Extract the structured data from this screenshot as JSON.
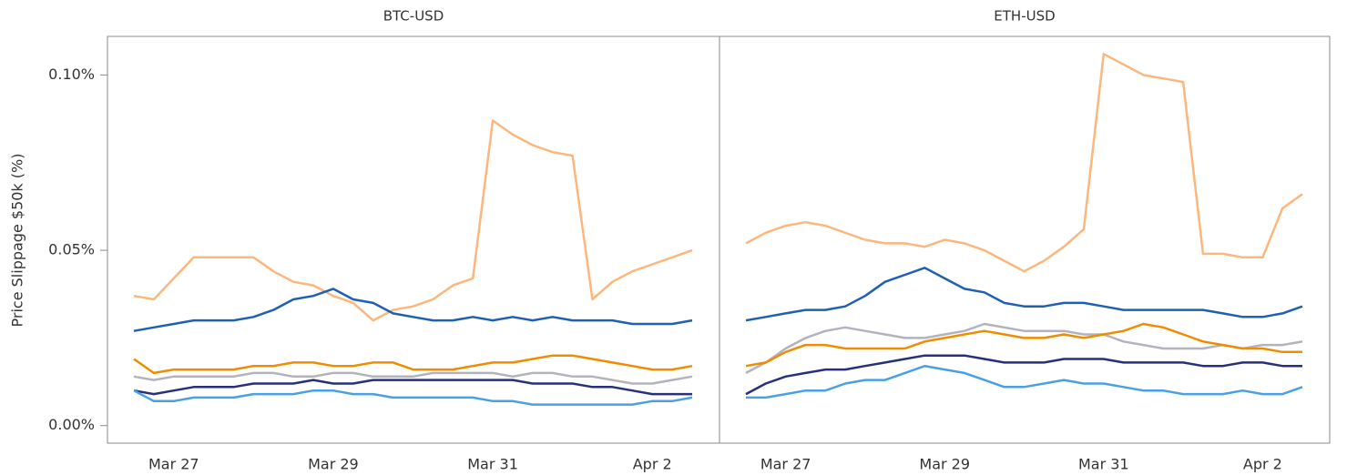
{
  "chart_data": [
    {
      "type": "line",
      "title": "BTC-USD",
      "ylabel": "Price Slippage $50k (%)",
      "categories": [
        null,
        null,
        "Mar 27",
        null,
        null,
        null,
        null,
        null,
        null,
        null,
        "Mar 29",
        null,
        null,
        null,
        null,
        null,
        null,
        null,
        "Mar 31",
        null,
        null,
        null,
        null,
        null,
        null,
        null,
        "Apr 2",
        null,
        null
      ],
      "ylim": [
        -0.005,
        0.111
      ],
      "yticks": [
        {
          "value": 0,
          "label": "0.00%"
        },
        {
          "value": 0.05,
          "label": "0.05%"
        },
        {
          "value": 0.1,
          "label": "0.10%"
        }
      ],
      "series": [
        {
          "color": "#fdb67c",
          "values": [
            0.037,
            0.036,
            0.042,
            0.048,
            0.048,
            0.048,
            0.048,
            0.044,
            0.041,
            0.04,
            0.037,
            0.035,
            0.03,
            0.033,
            0.034,
            0.036,
            0.04,
            0.042,
            0.087,
            0.083,
            0.08,
            0.078,
            0.077,
            0.036,
            0.041,
            0.044,
            0.046,
            0.048,
            0.05
          ]
        },
        {
          "color": "#1f5fb4",
          "values": [
            0.027,
            0.028,
            0.029,
            0.03,
            0.03,
            0.03,
            0.031,
            0.033,
            0.036,
            0.037,
            0.039,
            0.036,
            0.035,
            0.032,
            0.031,
            0.03,
            0.03,
            0.031,
            0.03,
            0.031,
            0.03,
            0.031,
            0.03,
            0.03,
            0.03,
            0.029,
            0.029,
            0.029,
            0.03
          ]
        },
        {
          "color": "#b3b3bd",
          "values": [
            0.014,
            0.013,
            0.014,
            0.014,
            0.014,
            0.014,
            0.015,
            0.015,
            0.014,
            0.014,
            0.015,
            0.015,
            0.014,
            0.014,
            0.014,
            0.015,
            0.015,
            0.015,
            0.015,
            0.014,
            0.015,
            0.015,
            0.014,
            0.014,
            0.013,
            0.012,
            0.012,
            0.013,
            0.014
          ]
        },
        {
          "color": "#f08c00",
          "values": [
            0.019,
            0.015,
            0.016,
            0.016,
            0.016,
            0.016,
            0.017,
            0.017,
            0.018,
            0.018,
            0.017,
            0.017,
            0.018,
            0.018,
            0.016,
            0.016,
            0.016,
            0.017,
            0.018,
            0.018,
            0.019,
            0.02,
            0.02,
            0.019,
            0.018,
            0.017,
            0.016,
            0.016,
            0.017
          ]
        },
        {
          "color": "#27307a",
          "values": [
            0.01,
            0.009,
            0.01,
            0.011,
            0.011,
            0.011,
            0.012,
            0.012,
            0.012,
            0.013,
            0.012,
            0.012,
            0.013,
            0.013,
            0.013,
            0.013,
            0.013,
            0.013,
            0.013,
            0.013,
            0.012,
            0.012,
            0.012,
            0.011,
            0.011,
            0.01,
            0.009,
            0.009,
            0.009
          ]
        },
        {
          "color": "#4aa0e6",
          "values": [
            0.01,
            0.007,
            0.007,
            0.008,
            0.008,
            0.008,
            0.009,
            0.009,
            0.009,
            0.01,
            0.01,
            0.009,
            0.009,
            0.008,
            0.008,
            0.008,
            0.008,
            0.008,
            0.007,
            0.007,
            0.006,
            0.006,
            0.006,
            0.006,
            0.006,
            0.006,
            0.007,
            0.007,
            0.008
          ]
        }
      ]
    },
    {
      "type": "line",
      "title": "ETH-USD",
      "categories": [
        null,
        null,
        "Mar 27",
        null,
        null,
        null,
        null,
        null,
        null,
        null,
        "Mar 29",
        null,
        null,
        null,
        null,
        null,
        null,
        null,
        "Mar 31",
        null,
        null,
        null,
        null,
        null,
        null,
        null,
        "Apr 2",
        null,
        null
      ],
      "ylim": [
        -0.005,
        0.111
      ],
      "series": [
        {
          "color": "#fdb67c",
          "values": [
            0.052,
            0.055,
            0.057,
            0.058,
            0.057,
            0.055,
            0.053,
            0.052,
            0.052,
            0.051,
            0.053,
            0.052,
            0.05,
            0.047,
            0.044,
            0.047,
            0.051,
            0.056,
            0.106,
            0.103,
            0.1,
            0.099,
            0.098,
            0.049,
            0.049,
            0.048,
            0.048,
            0.062,
            0.066
          ]
        },
        {
          "color": "#1f5fb4",
          "values": [
            0.03,
            0.031,
            0.032,
            0.033,
            0.033,
            0.034,
            0.037,
            0.041,
            0.043,
            0.045,
            0.042,
            0.039,
            0.038,
            0.035,
            0.034,
            0.034,
            0.035,
            0.035,
            0.034,
            0.033,
            0.033,
            0.033,
            0.033,
            0.033,
            0.032,
            0.031,
            0.031,
            0.032,
            0.034
          ]
        },
        {
          "color": "#b3b3bd",
          "values": [
            0.015,
            0.018,
            0.022,
            0.025,
            0.027,
            0.028,
            0.027,
            0.026,
            0.025,
            0.025,
            0.026,
            0.027,
            0.029,
            0.028,
            0.027,
            0.027,
            0.027,
            0.026,
            0.026,
            0.024,
            0.023,
            0.022,
            0.022,
            0.022,
            0.023,
            0.022,
            0.023,
            0.023,
            0.024
          ]
        },
        {
          "color": "#f08c00",
          "values": [
            0.017,
            0.018,
            0.021,
            0.023,
            0.023,
            0.022,
            0.022,
            0.022,
            0.022,
            0.024,
            0.025,
            0.026,
            0.027,
            0.026,
            0.025,
            0.025,
            0.026,
            0.025,
            0.026,
            0.027,
            0.029,
            0.028,
            0.026,
            0.024,
            0.023,
            0.022,
            0.022,
            0.021,
            0.021
          ]
        },
        {
          "color": "#27307a",
          "values": [
            0.009,
            0.012,
            0.014,
            0.015,
            0.016,
            0.016,
            0.017,
            0.018,
            0.019,
            0.02,
            0.02,
            0.02,
            0.019,
            0.018,
            0.018,
            0.018,
            0.019,
            0.019,
            0.019,
            0.018,
            0.018,
            0.018,
            0.018,
            0.017,
            0.017,
            0.018,
            0.018,
            0.017,
            0.017
          ]
        },
        {
          "color": "#4aa0e6",
          "values": [
            0.008,
            0.008,
            0.009,
            0.01,
            0.01,
            0.012,
            0.013,
            0.013,
            0.015,
            0.017,
            0.016,
            0.015,
            0.013,
            0.011,
            0.011,
            0.012,
            0.013,
            0.012,
            0.012,
            0.011,
            0.01,
            0.01,
            0.009,
            0.009,
            0.009,
            0.01,
            0.009,
            0.009,
            0.011
          ]
        }
      ]
    }
  ]
}
